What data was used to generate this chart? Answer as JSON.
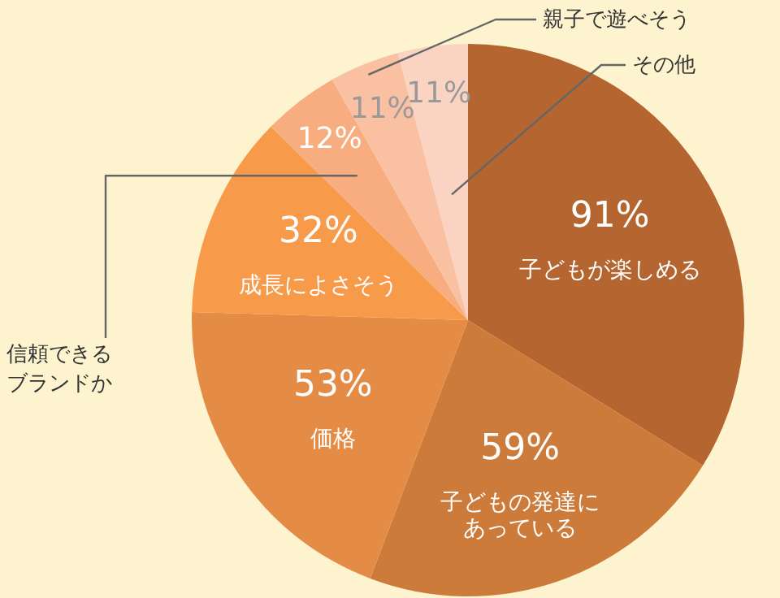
{
  "chart_data": {
    "type": "pie",
    "categories": [
      "子どもが楽しめる",
      "子どもの発達にあっている",
      "価格",
      "成長によさそう",
      "信頼できるブランドか",
      "親子で遊べそう",
      "その他"
    ],
    "values": [
      91,
      59,
      53,
      32,
      12,
      11,
      11
    ],
    "value_labels": [
      "91%",
      "59%",
      "53%",
      "32%",
      "12%",
      "11%",
      "11%"
    ],
    "colors": [
      "#b5652f",
      "#cd7b3b",
      "#e48c46",
      "#f79b4b",
      "#f7ad7f",
      "#f9c0a2",
      "#fbd3c3"
    ]
  }
}
